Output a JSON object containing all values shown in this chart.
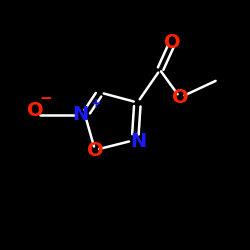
{
  "background_color": "#000000",
  "bond_color": "#ffffff",
  "atom_colors": {
    "O": "#ff2200",
    "N": "#1a1aff",
    "C": "#ffffff"
  },
  "fig_size": [
    2.5,
    2.5
  ],
  "dpi": 100
}
